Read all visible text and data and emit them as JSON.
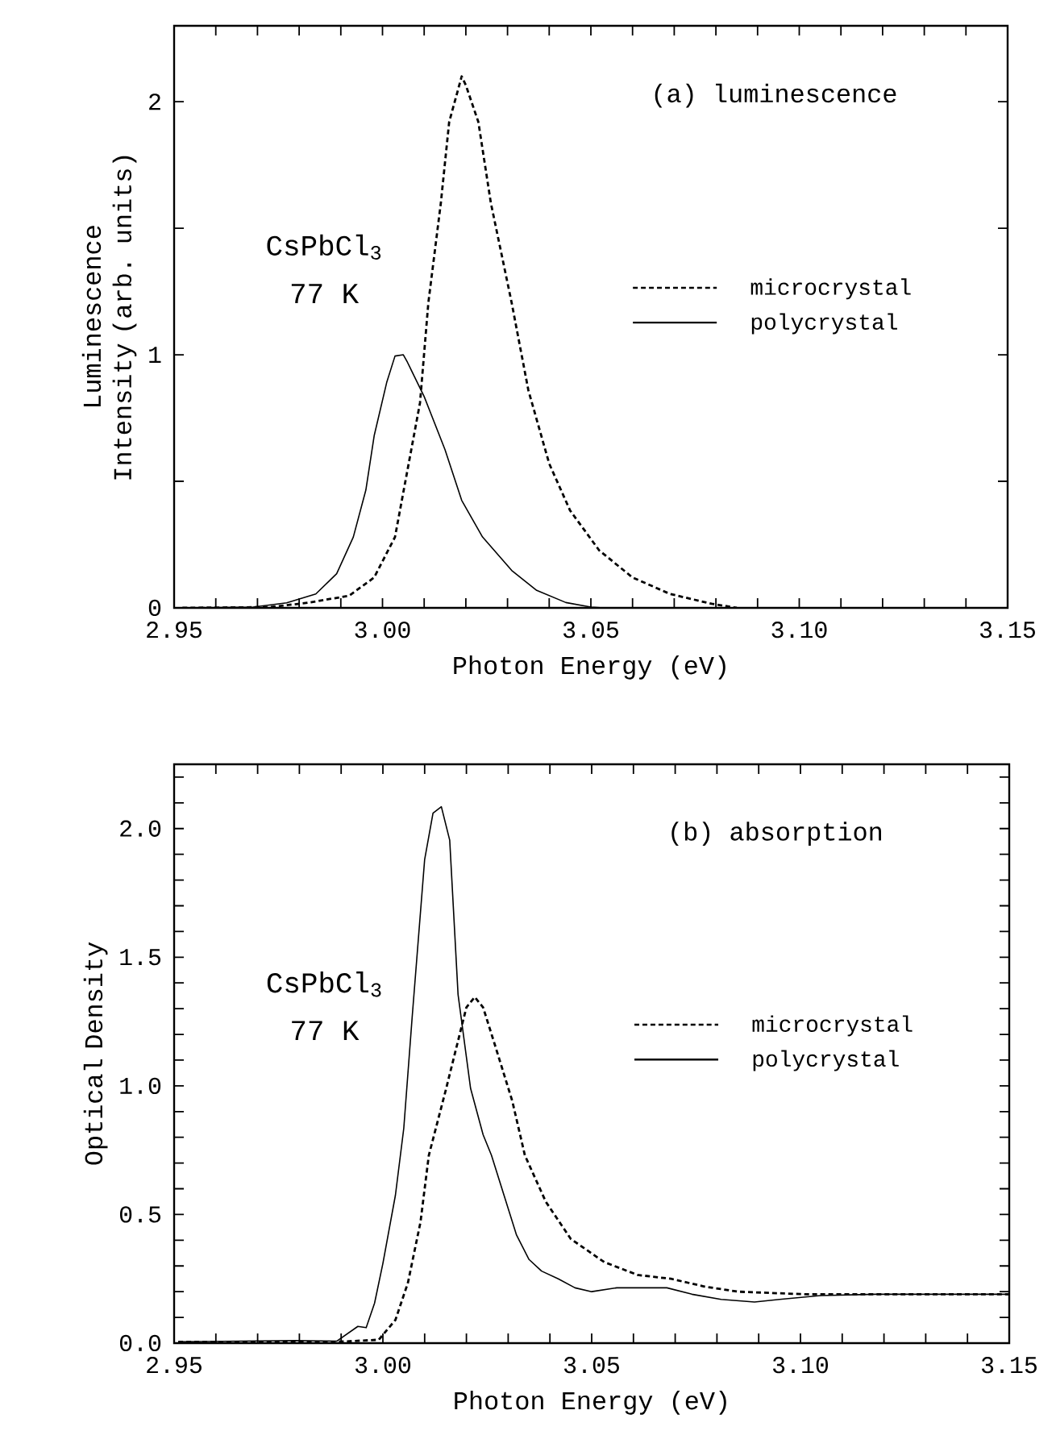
{
  "chart_data": [
    {
      "type": "line",
      "xlabel": "Photon Energy (eV)",
      "ylabel": "Luminescence Intensity (arb. units)",
      "annotations": [
        "(a) luminescence",
        "CsPbCl$_{3}$",
        "77 K"
      ],
      "xlim": [
        2.95,
        3.15
      ],
      "ylim": [
        0,
        2.3
      ],
      "xticks": [
        2.95,
        {
          "value": 2.96,
          "label": null
        },
        {
          "value": 2.97,
          "label": null
        },
        {
          "value": 2.98,
          "label": null
        },
        {
          "value": 2.99,
          "label": null
        },
        {
          "value": 3.0,
          "label": "3.00"
        },
        {
          "value": 3.01,
          "label": null
        },
        {
          "value": 3.02,
          "label": null
        },
        {
          "value": 3.03,
          "label": null
        },
        {
          "value": 3.04,
          "label": null
        },
        3.05,
        {
          "value": 3.06,
          "label": null
        },
        {
          "value": 3.07,
          "label": null
        },
        {
          "value": 3.08,
          "label": null
        },
        {
          "value": 3.09,
          "label": null
        },
        {
          "value": 3.1,
          "label": "3.10"
        },
        {
          "value": 3.11,
          "label": null
        },
        {
          "value": 3.12,
          "label": null
        },
        {
          "value": 3.13,
          "label": null
        },
        {
          "value": 3.14,
          "label": null
        },
        3.15
      ],
      "yticks": [
        0,
        {
          "value": 0.5,
          "label": null
        },
        1,
        {
          "value": 1.5,
          "label": null
        },
        2
      ],
      "grid": false,
      "legend": "right",
      "marker": "none",
      "series": [
        {
          "name": "microcrystal",
          "color": "#000000",
          "line_style": "dashed",
          "x": [
            2.952,
            2.973,
            2.982,
            2.992,
            2.998,
            3.003,
            3.006,
            3.009,
            3.011,
            3.014,
            3.016,
            3.019,
            3.02,
            3.023,
            3.026,
            3.031,
            3.035,
            3.04,
            3.045,
            3.052,
            3.06,
            3.069,
            3.079,
            3.085
          ],
          "values": [
            0,
            0.003,
            0.02,
            0.048,
            0.12,
            0.28,
            0.545,
            0.81,
            1.205,
            1.6,
            1.92,
            2.1,
            2.065,
            1.92,
            1.6,
            1.205,
            0.86,
            0.57,
            0.385,
            0.227,
            0.12,
            0.055,
            0.016,
            0
          ]
        },
        {
          "name": "polycrystal",
          "color": "#000000",
          "line_style": "solid",
          "x": [
            2.952,
            2.969,
            2.977,
            2.984,
            2.989,
            2.993,
            2.996,
            2.998,
            3.001,
            3.003,
            3.005,
            3.006,
            3.01,
            3.015,
            3.019,
            3.024,
            3.031,
            3.037,
            3.044,
            3.05,
            3.053
          ],
          "values": [
            0,
            0.003,
            0.02,
            0.055,
            0.135,
            0.28,
            0.465,
            0.68,
            0.89,
            0.995,
            1.0,
            0.97,
            0.835,
            0.625,
            0.425,
            0.28,
            0.148,
            0.069,
            0.021,
            0.003,
            0
          ]
        }
      ]
    },
    {
      "type": "line",
      "xlabel": "Photon Energy (eV)",
      "ylabel": "Optical Density",
      "annotations": [
        "(b) absorption",
        "CsPbCl$_{3}$",
        "77 K"
      ],
      "xlim": [
        2.95,
        3.15
      ],
      "ylim": [
        0,
        2.25
      ],
      "xticks": [
        2.95,
        {
          "value": 2.96,
          "label": null
        },
        {
          "value": 2.97,
          "label": null
        },
        {
          "value": 2.98,
          "label": null
        },
        {
          "value": 2.99,
          "label": null
        },
        {
          "value": 3.0,
          "label": "3.00"
        },
        {
          "value": 3.01,
          "label": null
        },
        {
          "value": 3.02,
          "label": null
        },
        {
          "value": 3.03,
          "label": null
        },
        {
          "value": 3.04,
          "label": null
        },
        3.05,
        {
          "value": 3.06,
          "label": null
        },
        {
          "value": 3.07,
          "label": null
        },
        {
          "value": 3.08,
          "label": null
        },
        {
          "value": 3.09,
          "label": null
        },
        {
          "value": 3.1,
          "label": "3.10"
        },
        {
          "value": 3.11,
          "label": null
        },
        {
          "value": 3.12,
          "label": null
        },
        {
          "value": 3.13,
          "label": null
        },
        {
          "value": 3.14,
          "label": null
        },
        3.15
      ],
      "yticks": [
        {
          "value": 0,
          "label": "0.0"
        },
        {
          "value": 0.1,
          "label": null
        },
        {
          "value": 0.2,
          "label": null
        },
        {
          "value": 0.3,
          "label": null
        },
        {
          "value": 0.4,
          "label": null
        },
        0.5,
        {
          "value": 0.6,
          "label": null
        },
        {
          "value": 0.7,
          "label": null
        },
        {
          "value": 0.8,
          "label": null
        },
        {
          "value": 0.9,
          "label": null
        },
        {
          "value": 1.0,
          "label": "1.0"
        },
        {
          "value": 1.1,
          "label": null
        },
        {
          "value": 1.2,
          "label": null
        },
        {
          "value": 1.3,
          "label": null
        },
        {
          "value": 1.4,
          "label": null
        },
        1.5,
        {
          "value": 1.6,
          "label": null
        },
        {
          "value": 1.7,
          "label": null
        },
        {
          "value": 1.8,
          "label": null
        },
        {
          "value": 1.9,
          "label": null
        },
        {
          "value": 2.0,
          "label": "2.0"
        },
        {
          "value": 2.1,
          "label": null
        },
        {
          "value": 2.2,
          "label": null
        }
      ],
      "grid": false,
      "legend": "right",
      "marker": "none",
      "series": [
        {
          "name": "microcrystal",
          "color": "#000000",
          "line_style": "dashed",
          "x": [
            2.951,
            2.989,
            2.999,
            3.003,
            3.006,
            3.009,
            3.011,
            3.015,
            3.018,
            3.02,
            3.022,
            3.024,
            3.027,
            3.031,
            3.034,
            3.039,
            3.045,
            3.053,
            3.061,
            3.069,
            3.077,
            3.085,
            3.101,
            3.126,
            3.15
          ],
          "values": [
            0.005,
            0.005,
            0.013,
            0.09,
            0.235,
            0.47,
            0.73,
            0.98,
            1.175,
            1.305,
            1.345,
            1.305,
            1.15,
            0.94,
            0.73,
            0.55,
            0.405,
            0.315,
            0.265,
            0.25,
            0.22,
            0.2,
            0.19,
            0.19,
            0.19
          ]
        },
        {
          "name": "polycrystal",
          "color": "#000000",
          "line_style": "solid",
          "x": [
            2.951,
            2.979,
            2.989,
            2.994,
            2.996,
            2.998,
            3.0,
            3.003,
            3.005,
            3.007,
            3.01,
            3.012,
            3.014,
            3.016,
            3.018,
            3.021,
            3.024,
            3.026,
            3.029,
            3.032,
            3.035,
            3.038,
            3.042,
            3.046,
            3.05,
            3.056,
            3.063,
            3.068,
            3.074,
            3.081,
            3.089,
            3.095,
            3.105,
            3.118,
            3.134,
            3.15
          ],
          "values": [
            0.005,
            0.01,
            0.008,
            0.065,
            0.06,
            0.155,
            0.31,
            0.575,
            0.835,
            1.265,
            1.88,
            2.06,
            2.085,
            1.955,
            1.355,
            0.99,
            0.81,
            0.73,
            0.575,
            0.42,
            0.325,
            0.28,
            0.25,
            0.215,
            0.2,
            0.215,
            0.215,
            0.215,
            0.19,
            0.17,
            0.16,
            0.17,
            0.185,
            0.19,
            0.19,
            0.19
          ]
        }
      ]
    }
  ]
}
